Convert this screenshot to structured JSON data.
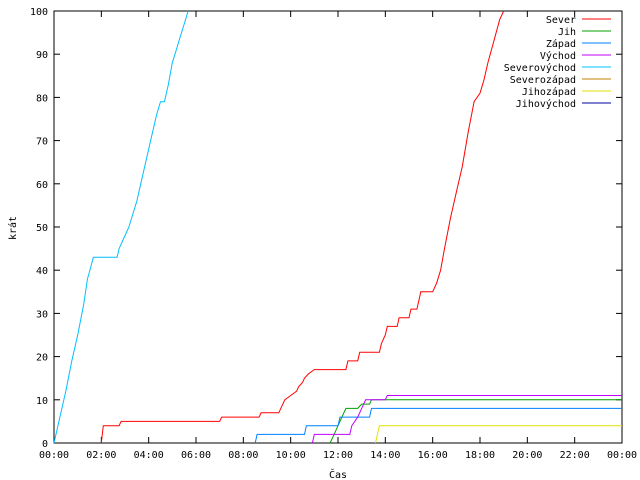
{
  "chart_data": {
    "type": "line",
    "title": "",
    "xlabel": "Čas",
    "ylabel": "krát",
    "ylim": [
      0,
      100
    ],
    "xlim": [
      "00:00",
      "24:00"
    ],
    "x_tick_labels": [
      "00:00",
      "02:00",
      "04:00",
      "06:00",
      "08:00",
      "10:00",
      "12:00",
      "14:00",
      "16:00",
      "18:00",
      "20:00",
      "22:00",
      "00:00"
    ],
    "y_tick_labels": [
      "0",
      "10",
      "20",
      "30",
      "40",
      "50",
      "60",
      "70",
      "80",
      "90",
      "100"
    ],
    "grid": false,
    "legend_position": "top-right",
    "series": [
      {
        "name": "Sever",
        "color": "#ff0000",
        "points": [
          [
            "02:00",
            0
          ],
          [
            "02:05",
            4
          ],
          [
            "02:45",
            4
          ],
          [
            "02:50",
            5
          ],
          [
            "07:00",
            5
          ],
          [
            "07:05",
            6
          ],
          [
            "08:40",
            6
          ],
          [
            "08:45",
            7
          ],
          [
            "09:30",
            7
          ],
          [
            "09:35",
            8
          ],
          [
            "09:45",
            10
          ],
          [
            "10:00",
            11
          ],
          [
            "10:15",
            12
          ],
          [
            "10:20",
            13
          ],
          [
            "10:30",
            14
          ],
          [
            "10:35",
            15
          ],
          [
            "10:45",
            16
          ],
          [
            "11:00",
            17
          ],
          [
            "12:20",
            17
          ],
          [
            "12:25",
            19
          ],
          [
            "12:50",
            19
          ],
          [
            "12:55",
            21
          ],
          [
            "13:45",
            21
          ],
          [
            "13:50",
            23
          ],
          [
            "14:00",
            25
          ],
          [
            "14:05",
            27
          ],
          [
            "14:30",
            27
          ],
          [
            "14:35",
            29
          ],
          [
            "15:00",
            29
          ],
          [
            "15:05",
            31
          ],
          [
            "15:20",
            31
          ],
          [
            "15:25",
            33
          ],
          [
            "15:30",
            35
          ],
          [
            "16:00",
            35
          ],
          [
            "16:10",
            37
          ],
          [
            "16:20",
            40
          ],
          [
            "16:30",
            45
          ],
          [
            "16:45",
            52
          ],
          [
            "17:00",
            58
          ],
          [
            "17:15",
            64
          ],
          [
            "17:30",
            72
          ],
          [
            "17:45",
            79
          ],
          [
            "18:00",
            81
          ],
          [
            "18:10",
            84
          ],
          [
            "18:20",
            88
          ],
          [
            "18:35",
            93
          ],
          [
            "18:50",
            98
          ],
          [
            "19:00",
            100
          ]
        ]
      },
      {
        "name": "Jih",
        "color": "#00a000",
        "points": [
          [
            "11:40",
            0
          ],
          [
            "11:50",
            2
          ],
          [
            "12:00",
            4
          ],
          [
            "12:10",
            6
          ],
          [
            "12:20",
            8
          ],
          [
            "12:50",
            8
          ],
          [
            "13:00",
            9
          ],
          [
            "13:20",
            9
          ],
          [
            "13:25",
            10
          ],
          [
            "24:00",
            10
          ]
        ]
      },
      {
        "name": "Západ",
        "color": "#0080ff",
        "points": [
          [
            "08:30",
            0
          ],
          [
            "08:35",
            2
          ],
          [
            "10:35",
            2
          ],
          [
            "10:40",
            4
          ],
          [
            "12:00",
            4
          ],
          [
            "12:05",
            6
          ],
          [
            "13:20",
            6
          ],
          [
            "13:25",
            8
          ],
          [
            "24:00",
            8
          ]
        ]
      },
      {
        "name": "Východ",
        "color": "#c000ff",
        "points": [
          [
            "10:55",
            0
          ],
          [
            "11:00",
            2
          ],
          [
            "12:30",
            2
          ],
          [
            "12:35",
            4
          ],
          [
            "12:50",
            6
          ],
          [
            "13:00",
            8
          ],
          [
            "13:10",
            10
          ],
          [
            "14:00",
            10
          ],
          [
            "14:05",
            11
          ],
          [
            "24:00",
            11
          ]
        ]
      },
      {
        "name": "Severovýchod",
        "color": "#00c0ff",
        "points": [
          [
            "00:00",
            0
          ],
          [
            "00:15",
            6
          ],
          [
            "00:30",
            12
          ],
          [
            "00:45",
            19
          ],
          [
            "01:00",
            25
          ],
          [
            "01:15",
            32
          ],
          [
            "01:25",
            38
          ],
          [
            "01:40",
            43
          ],
          [
            "02:40",
            43
          ],
          [
            "02:45",
            45
          ],
          [
            "02:55",
            47
          ],
          [
            "03:10",
            50
          ],
          [
            "03:30",
            56
          ],
          [
            "03:50",
            64
          ],
          [
            "04:10",
            72
          ],
          [
            "04:20",
            76
          ],
          [
            "04:30",
            79
          ],
          [
            "04:40",
            79
          ],
          [
            "04:50",
            83
          ],
          [
            "05:00",
            88
          ],
          [
            "05:10",
            91
          ],
          [
            "05:20",
            94
          ],
          [
            "05:30",
            97
          ],
          [
            "05:40",
            100
          ]
        ]
      },
      {
        "name": "Severozápad",
        "color": "#c08000",
        "points": []
      },
      {
        "name": "Jihozápad",
        "color": "#e0e000",
        "points": [
          [
            "13:35",
            0
          ],
          [
            "13:45",
            4
          ],
          [
            "24:00",
            4
          ]
        ]
      },
      {
        "name": "Jihovýchod",
        "color": "#0000a0",
        "points": []
      }
    ]
  }
}
